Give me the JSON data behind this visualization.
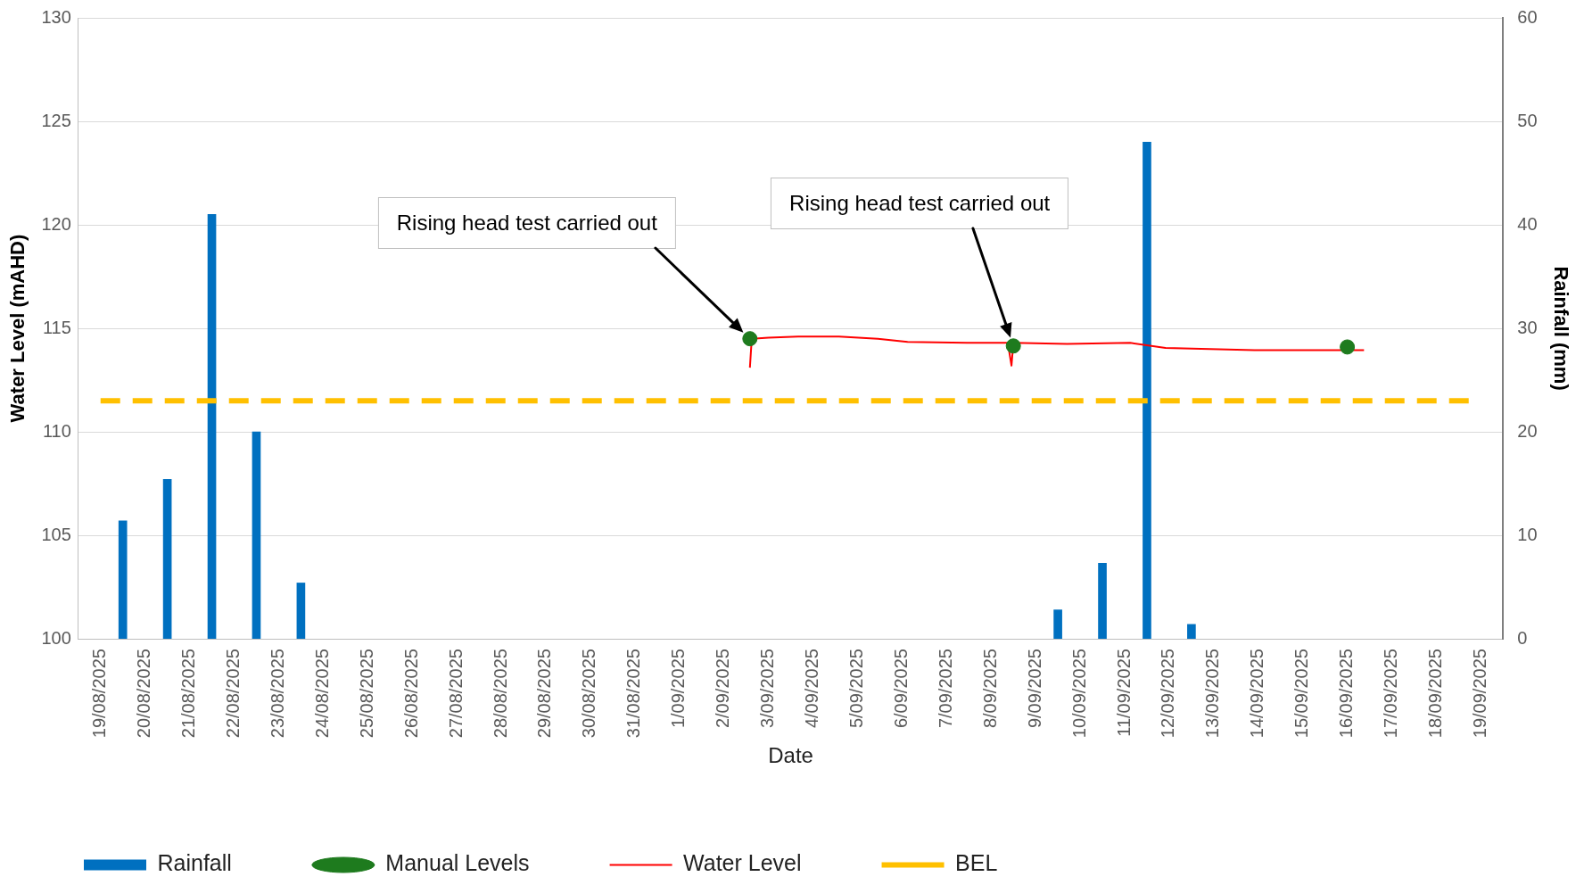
{
  "chart_data": {
    "type": "bar",
    "xlabel": "Date",
    "ylabel": "Water Level (mAHD)",
    "y2label": "Rainfall (mm)",
    "xlim": [
      "2025-08-19",
      "2025-09-19"
    ],
    "xticks": [
      {
        "value": "2025-08-19",
        "label": "19/08/2025"
      },
      {
        "value": "2025-08-20",
        "label": "20/08/2025"
      },
      {
        "value": "2025-08-21",
        "label": "21/08/2025"
      },
      {
        "value": "2025-08-22",
        "label": "22/08/2025"
      },
      {
        "value": "2025-08-23",
        "label": "23/08/2025"
      },
      {
        "value": "2025-08-24",
        "label": "24/08/2025"
      },
      {
        "value": "2025-08-25",
        "label": "25/08/2025"
      },
      {
        "value": "2025-08-26",
        "label": "26/08/2025"
      },
      {
        "value": "2025-08-27",
        "label": "27/08/2025"
      },
      {
        "value": "2025-08-28",
        "label": "28/08/2025"
      },
      {
        "value": "2025-08-29",
        "label": "29/08/2025"
      },
      {
        "value": "2025-08-30",
        "label": "30/08/2025"
      },
      {
        "value": "2025-08-31",
        "label": "31/08/2025"
      },
      {
        "value": "2025-09-01",
        "label": "1/09/2025"
      },
      {
        "value": "2025-09-02",
        "label": "2/09/2025"
      },
      {
        "value": "2025-09-03",
        "label": "3/09/2025"
      },
      {
        "value": "2025-09-04",
        "label": "4/09/2025"
      },
      {
        "value": "2025-09-05",
        "label": "5/09/2025"
      },
      {
        "value": "2025-09-06",
        "label": "6/09/2025"
      },
      {
        "value": "2025-09-07",
        "label": "7/09/2025"
      },
      {
        "value": "2025-09-08",
        "label": "8/09/2025"
      },
      {
        "value": "2025-09-09",
        "label": "9/09/2025"
      },
      {
        "value": "2025-09-10",
        "label": "10/09/2025"
      },
      {
        "value": "2025-09-11",
        "label": "11/09/2025"
      },
      {
        "value": "2025-09-12",
        "label": "12/09/2025"
      },
      {
        "value": "2025-09-13",
        "label": "13/09/2025"
      },
      {
        "value": "2025-09-14",
        "label": "14/09/2025"
      },
      {
        "value": "2025-09-15",
        "label": "15/09/2025"
      },
      {
        "value": "2025-09-16",
        "label": "16/09/2025"
      },
      {
        "value": "2025-09-17",
        "label": "17/09/2025"
      },
      {
        "value": "2025-09-18",
        "label": "18/09/2025"
      },
      {
        "value": "2025-09-19",
        "label": "19/09/2025"
      }
    ],
    "ylim": [
      100,
      130
    ],
    "yticks": [
      100,
      105,
      110,
      115,
      120,
      125,
      130
    ],
    "y2lim": [
      0,
      60
    ],
    "y2ticks": [
      0,
      10,
      20,
      30,
      40,
      50,
      60
    ],
    "grid": "y",
    "legend": "bottom left",
    "series": [
      {
        "name": "Rainfall",
        "axis": "y2",
        "color": "#0070c0",
        "x": [
          "2025-08-19T12:00",
          "2025-08-20T12:00",
          "2025-08-21T12:00",
          "2025-08-22T12:00",
          "2025-08-23T12:00",
          "2025-09-09T12:00",
          "2025-09-10T12:00",
          "2025-09-11T12:00",
          "2025-09-12T12:00"
        ],
        "values": [
          11.4,
          15.4,
          41,
          20,
          5.4,
          2.8,
          7.3,
          48,
          1.4
        ]
      },
      {
        "name": "Manual Levels",
        "type": "scatter",
        "marker": "circle",
        "color": "#1e7b1e",
        "x": [
          "2025-09-02T14:00",
          "2025-09-08T12:00",
          "2025-09-16T00:00"
        ],
        "values": [
          114.5,
          114.15,
          114.1
        ]
      },
      {
        "name": "Water Level",
        "type": "line",
        "marker": "none",
        "line_style": "solid",
        "color": "#ff0000",
        "x": [
          "2025-09-02T14:00",
          "2025-09-02T15:00",
          "2025-09-03T00:00",
          "2025-09-03T16:00",
          "2025-09-04T14:00",
          "2025-09-05T11:00",
          "2025-09-06T03:00",
          "2025-09-07T11:00",
          "2025-09-08T09:00",
          "2025-09-08T11:00",
          "2025-09-08T12:00",
          "2025-09-09T17:00",
          "2025-09-11T03:00",
          "2025-09-11T22:00",
          "2025-09-13T22:00",
          "2025-09-15T01:00",
          "2025-09-16T09:00"
        ],
        "values": [
          113.1,
          114.5,
          114.55,
          114.6,
          114.6,
          114.5,
          114.35,
          114.3,
          114.3,
          113.2,
          114.3,
          114.25,
          114.3,
          114.05,
          113.95,
          113.95,
          113.95
        ]
      }
    ],
    "ref_lines": [
      {
        "axis": "y",
        "value": 111.5,
        "label": "BEL",
        "color": "#ffc000",
        "line_style": "dashed"
      }
    ],
    "annotations": [
      "Rising head test carried out",
      "Rising head test carried out"
    ]
  }
}
